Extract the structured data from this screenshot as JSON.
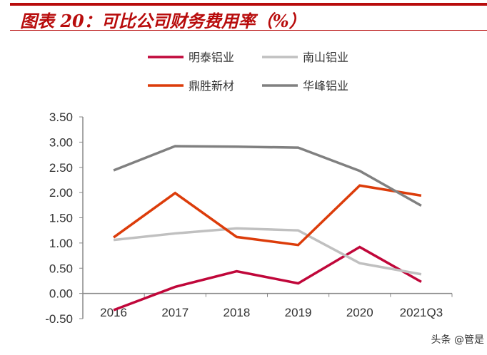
{
  "title": "图表 20：可比公司财务费用率（%）",
  "watermark": "头条 @管是",
  "chart_data": {
    "type": "line",
    "title": "图表 20：可比公司财务费用率（%）",
    "categories": [
      "2016",
      "2017",
      "2018",
      "2019",
      "2020",
      "2021Q3"
    ],
    "ylim": [
      -0.5,
      3.5
    ],
    "yticks": [
      "-0.50",
      "0.00",
      "0.50",
      "1.00",
      "1.50",
      "2.00",
      "2.50",
      "3.00",
      "3.50"
    ],
    "legend_position": "top",
    "series": [
      {
        "name": "明泰铝业",
        "color": "#c0073a",
        "values": [
          -0.33,
          0.13,
          0.44,
          0.2,
          0.92,
          0.23
        ]
      },
      {
        "name": "南山铝业",
        "color": "#c0c0c0",
        "values": [
          1.06,
          1.19,
          1.29,
          1.25,
          0.6,
          0.38
        ]
      },
      {
        "name": "鼎胜新材",
        "color": "#dc3c0a",
        "values": [
          1.11,
          1.99,
          1.12,
          0.96,
          2.14,
          1.94
        ]
      },
      {
        "name": "华峰铝业",
        "color": "#808080",
        "values": [
          2.44,
          2.92,
          2.91,
          2.89,
          2.43,
          1.74
        ]
      }
    ]
  }
}
